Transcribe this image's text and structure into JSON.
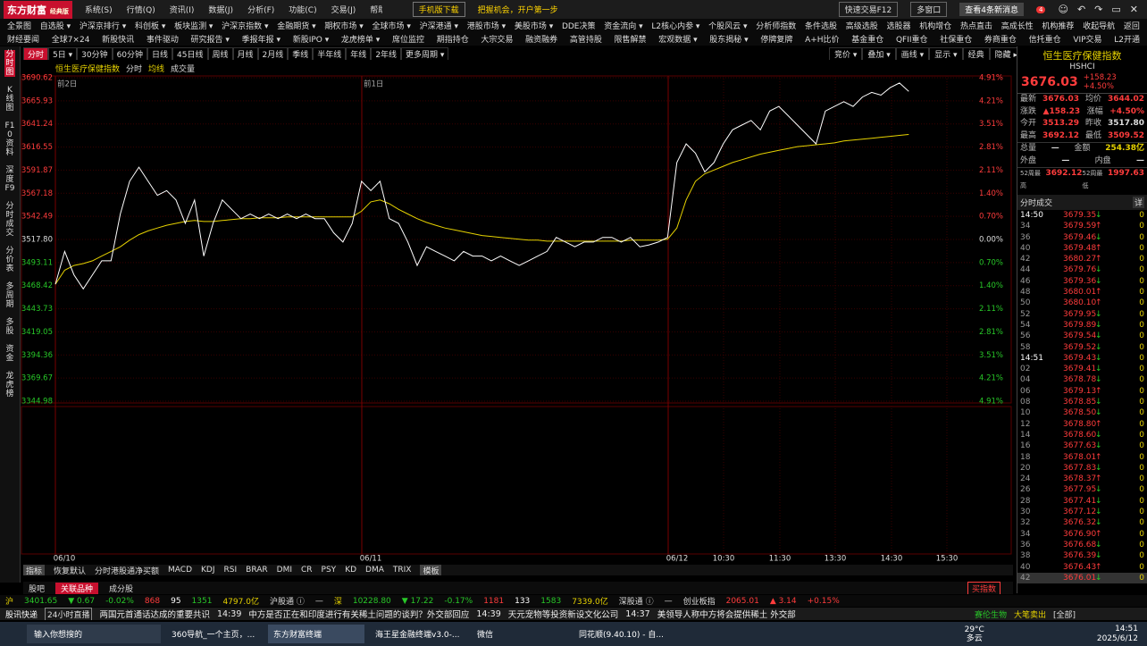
{
  "title_bar": {
    "logo": "东方财富",
    "edition": "经典版",
    "menus": [
      "系统(S)",
      "行情(Q)",
      "资讯(I)",
      "数据(J)",
      "分析(F)",
      "功能(C)",
      "交易(J)",
      "帮助(H)"
    ],
    "phone": "手机版下载",
    "promo": "把握机会，开户第一步",
    "quick_trade": "快速交易F12",
    "multi_window": "多窗口",
    "messages": "查看4条新消息",
    "badge": "4"
  },
  "nav": {
    "row1": [
      "全景图",
      "自选股 ▾",
      "沪深京排行 ▾",
      "科创板 ▾",
      "板块监测 ▾",
      "沪深京指数 ▾",
      "金融期货 ▾",
      "期权市场 ▾",
      "全球市场 ▾",
      "沪深港通 ▾",
      "港股市场 ▾",
      "美股市场 ▾",
      "DDE决策",
      "资金流向 ▾",
      "L2核心内参 ▾",
      "个股风云 ▾",
      "分析师指数",
      "条件选股",
      "高级选股",
      "选股器",
      "机构增仓",
      "热点直击",
      "高成长性",
      "机构推荐",
      "收起导航",
      "返回"
    ],
    "row2": [
      "财经要闻",
      "全球7×24",
      "新股快讯",
      "事件驱动",
      "研究报告 ▾",
      "季报年报 ▾",
      "新股IPO ▾",
      "龙虎榜单 ▾",
      "席位监控",
      "期指持仓",
      "大宗交易",
      "融资融券",
      "高管持股",
      "限售解禁",
      "宏观数据 ▾",
      "股东揭秘 ▾",
      "停牌复牌",
      "A+H比价",
      "基金重仓",
      "QFII重仓",
      "社保重仓",
      "券商重仓",
      "信托重仓",
      "VIP交易",
      "L2开通"
    ]
  },
  "side_tabs": [
    "分时图",
    "K线图",
    "F10资料",
    "深度F9",
    "分时成交",
    "分价表",
    "多周期",
    "多股",
    "资金",
    "龙虎榜"
  ],
  "toolbar": {
    "periods": [
      "分时",
      "5日 ▾",
      "30分钟",
      "60分钟",
      "日线",
      "45日线",
      "周线",
      "月线",
      "2月线",
      "季线",
      "半年线",
      "年线",
      "2年线",
      "更多周期 ▾"
    ],
    "tools": [
      "竞价 ▾",
      "叠加 ▾",
      "画线 ▾",
      "显示 ▾",
      "经典",
      "隐藏 ▸▸"
    ]
  },
  "chart": {
    "name": "恒生医疗保健指数",
    "mode": "分时",
    "avg_label": "均线",
    "vol_label": "成交量",
    "day_notes": [
      "前2日",
      "前1日"
    ],
    "xlabels": [
      "06/10",
      "06/11",
      "06/12",
      "10:30",
      "11:30",
      "13:30",
      "14:30",
      "15:30"
    ],
    "ylim": [
      3344.98,
      3690.62
    ],
    "yticks": [
      3690.62,
      3665.93,
      3641.24,
      3616.55,
      3591.87,
      3567.18,
      3542.49,
      {
        "value": 3517.8,
        "label": "3517.80"
      },
      3493.11,
      3468.42,
      3443.73,
      3419.05,
      3394.36,
      3369.67,
      3344.98
    ],
    "pct_labels": [
      "4.91%",
      "4.21%",
      "3.51%",
      "2.81%",
      "2.11%",
      "1.40%",
      "0.70%",
      "0.00%",
      "0.70%",
      "1.40%",
      "2.11%",
      "2.81%",
      "3.51%",
      "4.21%",
      "4.91%"
    ],
    "price": {
      "color": "#ffffff",
      "values": [
        3470,
        3505,
        3480,
        3465,
        3480,
        3495,
        3495,
        3545,
        3580,
        3595,
        3580,
        3565,
        3570,
        3560,
        3535,
        3560,
        3500,
        3535,
        3560,
        3550,
        3540,
        3545,
        3540,
        3545,
        3540,
        3545,
        3540,
        3545,
        3540,
        3540,
        3525,
        3515,
        3535,
        3580,
        3570,
        3580,
        3540,
        3535,
        3515,
        3490,
        3510,
        3505,
        3500,
        3495,
        3505,
        3500,
        3500,
        3495,
        3500,
        3495,
        3490,
        3495,
        3500,
        3505,
        3520,
        3515,
        3510,
        3515,
        3515,
        3520,
        3520,
        3515,
        3520,
        3510,
        3512,
        3515,
        3520,
        3600,
        3620,
        3610,
        3590,
        3600,
        3620,
        3635,
        3640,
        3645,
        3635,
        3655,
        3660,
        3650,
        3640,
        3630,
        3620,
        3655,
        3660,
        3665,
        3660,
        3670,
        3675,
        3672,
        3680,
        3685,
        3676,
        null,
        null,
        null,
        null,
        null,
        null
      ]
    },
    "avg": {
      "color": "#e6d200",
      "values": [
        3470,
        3485,
        3490,
        3492,
        3495,
        3500,
        3505,
        3510,
        3517,
        3523,
        3527,
        3530,
        3533,
        3535,
        3537,
        3538,
        3537,
        3537,
        3538,
        3539,
        3540,
        3540,
        3541,
        3541,
        3541,
        3542,
        3542,
        3542,
        3542,
        3542,
        3542,
        3542,
        3542,
        3548,
        3558,
        3560,
        3556,
        3550,
        3545,
        3540,
        3536,
        3533,
        3530,
        3528,
        3526,
        3524,
        3522,
        3521,
        3520,
        3519,
        3518,
        3517,
        3517,
        3516,
        3516,
        3516,
        3516,
        3516,
        3516,
        3516,
        3516,
        3516,
        3517,
        3517,
        3517,
        3517,
        3518,
        3530,
        3560,
        3580,
        3588,
        3592,
        3596,
        3600,
        3603,
        3606,
        3609,
        3611,
        3613,
        3615,
        3617,
        3618,
        3619,
        3620,
        3621,
        3623,
        3624,
        3625,
        3626,
        3627,
        3628,
        3629,
        3630,
        null,
        null,
        null,
        null,
        null,
        null
      ]
    }
  },
  "indicator_tabs": [
    "指标",
    "恢复默认",
    "分时港股通净买额",
    "MACD",
    "KDJ",
    "RSI",
    "BRAR",
    "DMI",
    "CR",
    "PSY",
    "KD",
    "DMA",
    "TRIX",
    "模板"
  ],
  "bottom_tabs": {
    "tabs": [
      "股吧",
      "关联品种",
      "成分股"
    ],
    "button": "买指数"
  },
  "market_bar": [
    {
      "text": "沪",
      "color": "#e6d200"
    },
    {
      "text": "3401.65",
      "color": "#28c828"
    },
    {
      "text": "▼ 0.67",
      "color": "#28c828"
    },
    {
      "text": "-0.02%",
      "color": "#28c828"
    },
    {
      "text": "868",
      "color": "#ff3c3c"
    },
    {
      "text": "95",
      "color": "#ffffff"
    },
    {
      "text": "1351",
      "color": "#28c828"
    },
    {
      "text": "4797.0亿",
      "color": "#e6d200"
    },
    {
      "text": "沪股通 ⓘ",
      "color": "#dddddd"
    },
    {
      "text": "—",
      "color": "#dddddd"
    },
    {
      "text": "深",
      "color": "#e6d200"
    },
    {
      "text": "10228.80",
      "color": "#28c828"
    },
    {
      "text": "▼ 17.22",
      "color": "#28c828"
    },
    {
      "text": "-0.17%",
      "color": "#28c828"
    },
    {
      "text": "1181",
      "color": "#ff3c3c"
    },
    {
      "text": "133",
      "color": "#ffffff"
    },
    {
      "text": "1583",
      "color": "#28c828"
    },
    {
      "text": "7339.0亿",
      "color": "#e6d200"
    },
    {
      "text": "深股通 ⓘ",
      "color": "#dddddd"
    },
    {
      "text": "—",
      "color": "#dddddd"
    },
    {
      "text": "创业板指",
      "color": "#dddddd"
    },
    {
      "text": "2065.01",
      "color": "#ff3c3c"
    },
    {
      "text": "▲ 3.14",
      "color": "#ff3c3c"
    },
    {
      "text": "+0.15%",
      "color": "#ff3c3c"
    }
  ],
  "news_bar": {
    "label": "股讯快递",
    "live": "24小时直播",
    "items": [
      "两国元首通话达成的重要共识",
      "14:39",
      "中方是否正在和印度进行有关稀土问题的谈判？外交部回应",
      "14:39",
      "天元宠物等投资新设文化公司",
      "14:37",
      "美领导人称中方将会提供稀土 外交部"
    ],
    "stock": "赛伦生物",
    "signal": "大笔卖出",
    "all": "[全部]"
  },
  "quote_panel": {
    "name": "恒生医疗保健指数",
    "code": "HSHCI",
    "price": "3676.03",
    "change": "+158.23",
    "pct": "+4.50%",
    "stats": [
      [
        "最新",
        "3676.03",
        "均价",
        "3644.02"
      ],
      [
        "涨跌",
        "▲158.23",
        "涨幅",
        "+4.50%"
      ],
      [
        "今开",
        "3513.29",
        "昨收",
        "3517.80"
      ],
      [
        "最高",
        "3692.12",
        "最低",
        "3509.52"
      ],
      [
        "总量",
        "—",
        "金额",
        "254.38亿"
      ],
      [
        "外盘",
        "—",
        "内盘",
        "—"
      ],
      [
        "52周最高",
        "3692.12",
        "52周最低",
        "1997.63"
      ]
    ],
    "ticks_title": "分时成交",
    "ticks_btn": "详",
    "ticks": [
      [
        "14:50",
        "3679.35",
        "↓",
        "0"
      ],
      [
        "34",
        "3679.59",
        "↑",
        "0"
      ],
      [
        "36",
        "3679.46",
        "↓",
        "0"
      ],
      [
        "40",
        "3679.48",
        "↑",
        "0"
      ],
      [
        "42",
        "3680.27",
        "↑",
        "0"
      ],
      [
        "44",
        "3679.76",
        "↓",
        "0"
      ],
      [
        "46",
        "3679.36",
        "↓",
        "0"
      ],
      [
        "48",
        "3680.01",
        "↑",
        "0"
      ],
      [
        "50",
        "3680.10",
        "↑",
        "0"
      ],
      [
        "52",
        "3679.95",
        "↓",
        "0"
      ],
      [
        "54",
        "3679.89",
        "↓",
        "0"
      ],
      [
        "56",
        "3679.54",
        "↓",
        "0"
      ],
      [
        "58",
        "3679.52",
        "↓",
        "0"
      ],
      [
        "14:51",
        "3679.43",
        "↓",
        "0"
      ],
      [
        "02",
        "3679.41",
        "↓",
        "0"
      ],
      [
        "04",
        "3678.78",
        "↓",
        "0"
      ],
      [
        "06",
        "3679.13",
        "↑",
        "0"
      ],
      [
        "08",
        "3678.85",
        "↓",
        "0"
      ],
      [
        "10",
        "3678.50",
        "↓",
        "0"
      ],
      [
        "12",
        "3678.80",
        "↑",
        "0"
      ],
      [
        "14",
        "3678.60",
        "↓",
        "0"
      ],
      [
        "16",
        "3677.63",
        "↓",
        "0"
      ],
      [
        "18",
        "3678.01",
        "↑",
        "0"
      ],
      [
        "20",
        "3677.83",
        "↓",
        "0"
      ],
      [
        "24",
        "3678.37",
        "↑",
        "0"
      ],
      [
        "26",
        "3677.95",
        "↓",
        "0"
      ],
      [
        "28",
        "3677.41",
        "↓",
        "0"
      ],
      [
        "30",
        "3677.12",
        "↓",
        "0"
      ],
      [
        "32",
        "3676.32",
        "↓",
        "0"
      ],
      [
        "34",
        "3676.90",
        "↑",
        "0"
      ],
      [
        "36",
        "3676.68",
        "↓",
        "0"
      ],
      [
        "38",
        "3676.39",
        "↓",
        "0"
      ],
      [
        "40",
        "3676.43",
        "↑",
        "0"
      ],
      [
        "42",
        "3676.01",
        "↓",
        "0"
      ]
    ]
  },
  "taskbar": {
    "search": "输入你想搜的",
    "apps": [
      "360导航_一个主页，...",
      "东方财富终端",
      "海王星金融终端v3.0-...",
      "微信",
      "同花顺(9.40.10) - 自..."
    ],
    "weather_temp": "29°C",
    "weather": "多云",
    "time": "14:51",
    "date": "2025/6/12"
  }
}
